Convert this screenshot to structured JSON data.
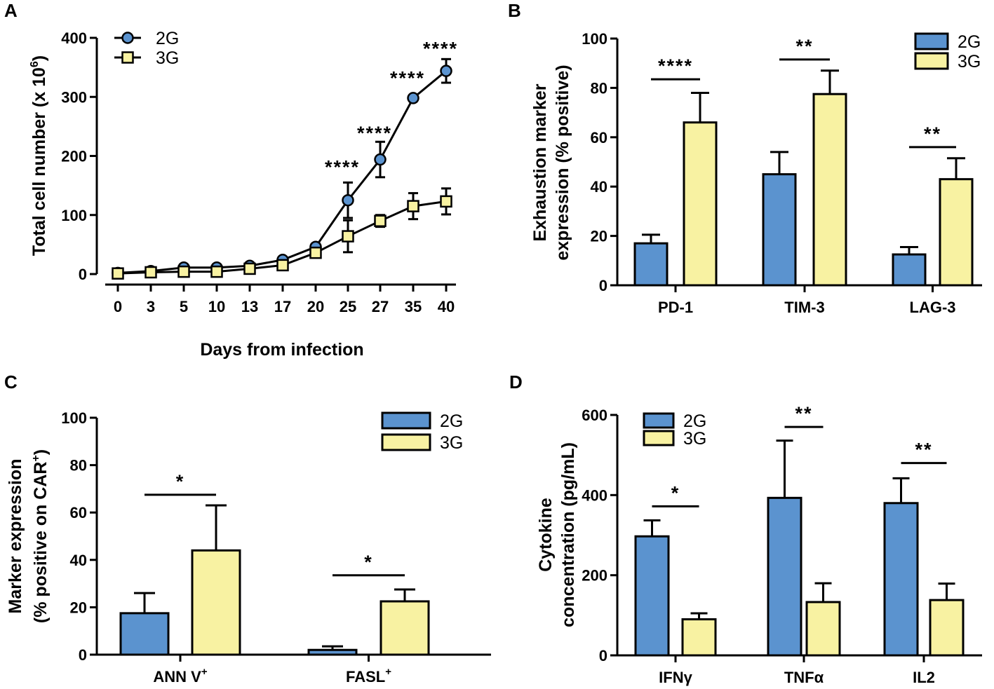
{
  "colors": {
    "g2": "#5B93CF",
    "g3": "#F8F2A2",
    "outline": "#000000"
  },
  "chart_data": [
    {
      "panel": "A",
      "type": "line",
      "xlabel": "Days from infection",
      "ylabel_main": "Total cell number (x 10",
      "ylabel_sup": "6",
      "ylabel_end": ")",
      "ylim": [
        0,
        400
      ],
      "yticks": [
        "0",
        "100",
        "200",
        "300",
        "400"
      ],
      "categories": [
        "0",
        "3",
        "5",
        "10",
        "13",
        "17",
        "20",
        "25",
        "27",
        "35",
        "40"
      ],
      "series": [
        {
          "name": "2G",
          "marker": "circle",
          "values": [
            2,
            5,
            11,
            11,
            14,
            24,
            46,
            125,
            194,
            298,
            344
          ],
          "errors": [
            1,
            1,
            2,
            2,
            2,
            3,
            5,
            30,
            30,
            4,
            20
          ]
        },
        {
          "name": "3G",
          "marker": "square",
          "values": [
            1,
            3,
            4,
            4,
            9,
            15,
            36,
            64,
            90,
            115,
            123
          ],
          "errors": [
            1,
            1,
            1,
            1,
            2,
            3,
            4,
            27,
            10,
            22,
            22
          ]
        }
      ],
      "annotations": [
        {
          "x_index": 7,
          "y": 182,
          "text": "****"
        },
        {
          "x_index": 8,
          "y": 240,
          "text": "****"
        },
        {
          "x_index": 9,
          "y": 333,
          "text": "****"
        },
        {
          "x_index": 10,
          "y": 383,
          "text": "****"
        }
      ]
    },
    {
      "panel": "B",
      "type": "bar",
      "ylabel_line1": "Exhaustion marker",
      "ylabel_line2": "expression (% positive)",
      "ylim": [
        0,
        100
      ],
      "yticks": [
        "0",
        "20",
        "40",
        "60",
        "80",
        "100"
      ],
      "categories": [
        "PD-1",
        "TIM-3",
        "LAG-3"
      ],
      "series": [
        {
          "name": "2G",
          "values": [
            17,
            45,
            12.5
          ],
          "errors": [
            3.5,
            9,
            3
          ]
        },
        {
          "name": "3G",
          "values": [
            66,
            77.5,
            43
          ],
          "errors": [
            12,
            9.5,
            8.5
          ]
        }
      ],
      "significance": [
        {
          "category": 0,
          "label": "****",
          "y": 83.5
        },
        {
          "category": 1,
          "label": "**",
          "y": 91.5
        },
        {
          "category": 2,
          "label": "**",
          "y": 56
        }
      ]
    },
    {
      "panel": "C",
      "type": "bar",
      "ylabel_line1": "Marker expression",
      "ylabel_line2": "(% positive on CAR",
      "ylabel_sup": "+",
      "ylabel_end": ")",
      "ylim": [
        0,
        100
      ],
      "yticks": [
        "0",
        "20",
        "40",
        "60",
        "80",
        "100"
      ],
      "categories": [
        {
          "main": "ANN V",
          "sup": "+"
        },
        {
          "main": "FASL",
          "sup": "+"
        }
      ],
      "series": [
        {
          "name": "2G",
          "values": [
            17.5,
            2
          ],
          "errors": [
            8.5,
            1.5
          ]
        },
        {
          "name": "3G",
          "values": [
            44,
            22.5
          ],
          "errors": [
            19,
            5
          ]
        }
      ],
      "significance": [
        {
          "category": 0,
          "label": "*",
          "y": 67.5
        },
        {
          "category": 1,
          "label": "*",
          "y": 33.5
        }
      ]
    },
    {
      "panel": "D",
      "type": "bar",
      "ylabel_line1": "Cytokine",
      "ylabel_line2": "concentration (pg/mL)",
      "ylim": [
        0,
        600
      ],
      "yticks": [
        "0",
        "200",
        "400",
        "600"
      ],
      "categories": [
        "IFNγ",
        "TNFα",
        "IL2"
      ],
      "series": [
        {
          "name": "2G",
          "values": [
            297,
            393,
            380
          ],
          "errors": [
            40,
            143,
            62
          ]
        },
        {
          "name": "3G",
          "values": [
            90,
            133,
            138
          ],
          "errors": [
            15,
            47,
            41
          ]
        }
      ],
      "significance": [
        {
          "category": 0,
          "label": "*",
          "y": 372
        },
        {
          "category": 1,
          "label": "**",
          "y": 570
        },
        {
          "category": 2,
          "label": "**",
          "y": 480
        }
      ]
    }
  ]
}
